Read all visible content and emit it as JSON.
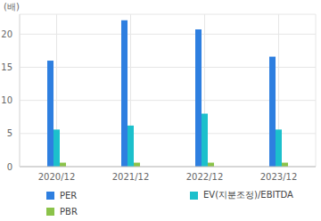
{
  "chart_data": {
    "type": "bar",
    "y_label": "(배)",
    "categories": [
      "2020/12",
      "2021/12",
      "2022/12",
      "2023/12"
    ],
    "series": [
      {
        "name": "PER",
        "color": "#2e7fe0",
        "values": [
          16.0,
          22.1,
          20.7,
          16.6
        ]
      },
      {
        "name": "EV(지분조정)/EBITDA",
        "color": "#1cc0cc",
        "values": [
          5.6,
          6.2,
          8.0,
          5.6
        ]
      },
      {
        "name": "PBR",
        "color": "#8bc34a",
        "values": [
          0.6,
          0.6,
          0.6,
          0.6
        ]
      }
    ],
    "ylim": [
      0,
      23
    ],
    "yticks": [
      0,
      5,
      10,
      15,
      20
    ],
    "grid": true,
    "legend": "bottom"
  }
}
